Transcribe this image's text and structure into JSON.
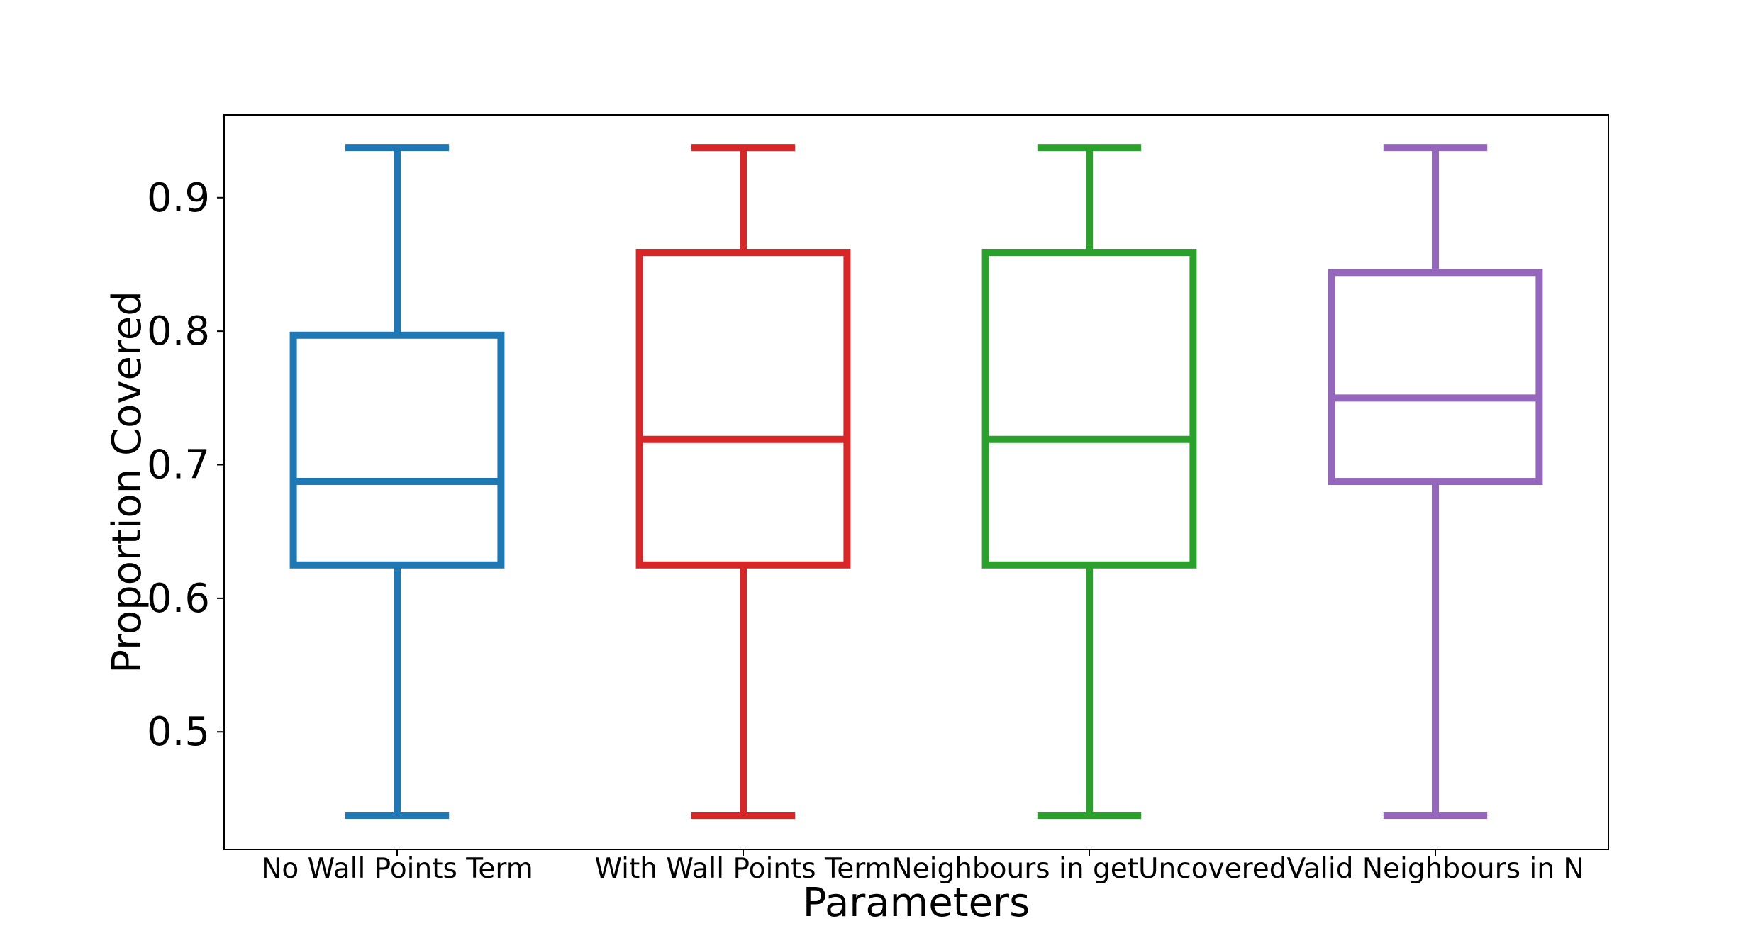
{
  "chart_data": {
    "type": "box",
    "title": "",
    "xlabel": "Parameters",
    "ylabel": "Proportion Covered",
    "ylim": [
      0.412,
      0.962
    ],
    "yticks": [
      0.5,
      0.6,
      0.7,
      0.8,
      0.9
    ],
    "ytick_labels": [
      "0.5",
      "0.6",
      "0.7",
      "0.8",
      "0.9"
    ],
    "grid": false,
    "legend": "none",
    "categories": [
      "No Wall Points Term",
      "With Wall Points Term",
      "Neighbours in getUncovered",
      "Valid Neighbours in N"
    ],
    "boxes": [
      {
        "category": "No Wall Points Term",
        "color": "#1f77b4",
        "whisker_low": 0.4375,
        "q1": 0.625,
        "median": 0.6875,
        "q3": 0.797,
        "whisker_high": 0.9375
      },
      {
        "category": "With Wall Points Term",
        "color": "#d62728",
        "whisker_low": 0.4375,
        "q1": 0.625,
        "median": 0.719,
        "q3": 0.859,
        "whisker_high": 0.9375
      },
      {
        "category": "Neighbours in getUncovered",
        "color": "#2ca02c",
        "whisker_low": 0.4375,
        "q1": 0.625,
        "median": 0.719,
        "q3": 0.859,
        "whisker_high": 0.9375
      },
      {
        "category": "Valid Neighbours in N",
        "color": "#9467bd",
        "whisker_low": 0.4375,
        "q1": 0.6875,
        "median": 0.75,
        "q3": 0.844,
        "whisker_high": 0.9375
      }
    ]
  }
}
